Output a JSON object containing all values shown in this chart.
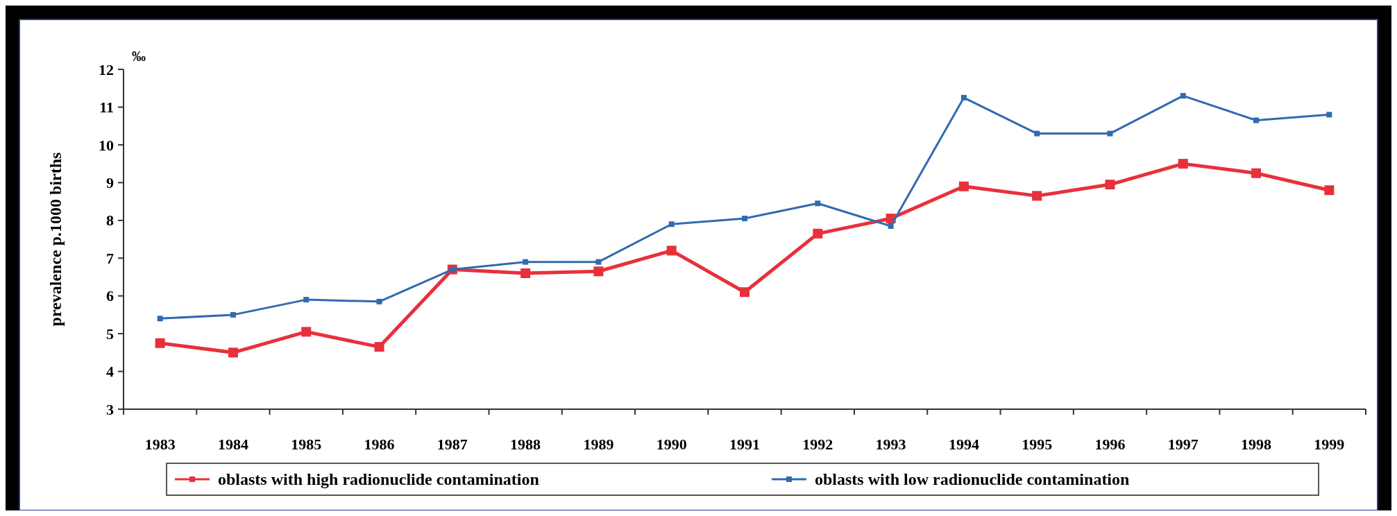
{
  "chart_data": {
    "type": "line",
    "ylabel": "prevalence p.1000 births",
    "annotations": [
      "‰"
    ],
    "categories": [
      "1983",
      "1984",
      "1985",
      "1986",
      "1987",
      "1988",
      "1989",
      "1990",
      "1991",
      "1992",
      "1993",
      "1994",
      "1995",
      "1996",
      "1997",
      "1998",
      "1999"
    ],
    "series": [
      {
        "name": "oblasts with high radionuclide contamination",
        "color": "#e8303c",
        "values": [
          4.75,
          4.5,
          5.05,
          4.65,
          6.7,
          6.6,
          6.65,
          7.2,
          6.1,
          7.65,
          8.05,
          8.9,
          8.65,
          8.95,
          9.5,
          9.25,
          8.8
        ]
      },
      {
        "name": "oblasts with low radionuclide contamination",
        "color": "#2f6bb0",
        "values": [
          5.4,
          5.5,
          5.9,
          5.85,
          6.7,
          6.9,
          6.9,
          7.9,
          8.05,
          8.45,
          7.85,
          11.25,
          10.3,
          10.3,
          11.3,
          10.65,
          10.8
        ]
      }
    ],
    "ylim": [
      3,
      12
    ],
    "yticks": [
      3,
      4,
      5,
      6,
      7,
      8,
      9,
      10,
      11,
      12
    ],
    "grid": false,
    "legend": "bottom",
    "marker": "square",
    "line_style": "solid"
  }
}
